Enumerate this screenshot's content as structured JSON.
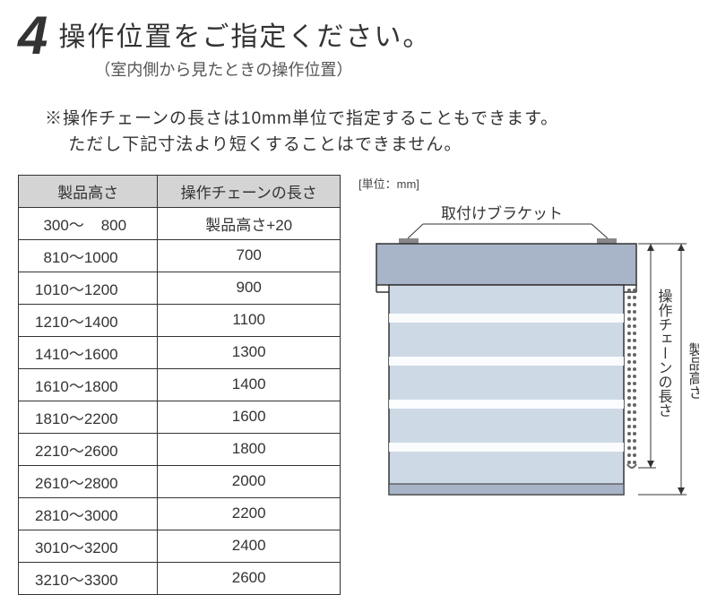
{
  "step": "4",
  "title": "操作位置をご指定ください。",
  "subtitle": "（室内側から見たときの操作位置）",
  "note_line1": "※操作チェーンの長さは10mm単位で指定することもできます。",
  "note_line2": "　 ただし下記寸法より短くすることはできません。",
  "unit_label": "[単位：mm]",
  "table": {
    "col1": "製品高さ",
    "col2": "操作チェーンの長さ",
    "rows": [
      {
        "h": " 300～  800",
        "c": "製品高さ+20"
      },
      {
        "h": " 810～1000",
        "c": "700"
      },
      {
        "h": "1010～1200",
        "c": "900"
      },
      {
        "h": "1210～1400",
        "c": "1100"
      },
      {
        "h": "1410～1600",
        "c": "1300"
      },
      {
        "h": "1610～1800",
        "c": "1400"
      },
      {
        "h": "1810～2200",
        "c": "1600"
      },
      {
        "h": "2210～2600",
        "c": "1800"
      },
      {
        "h": "2610～2800",
        "c": "2000"
      },
      {
        "h": "2810～3000",
        "c": "2200"
      },
      {
        "h": "3010～3200",
        "c": "2400"
      },
      {
        "h": "3210～3300",
        "c": "2600"
      }
    ]
  },
  "diagram": {
    "bracket_label": "取付けブラケット",
    "chain_label": "操作チェーンの長さ",
    "height_label": "製品高さ",
    "colors": {
      "headrail": "#a8b4c7",
      "fabric": "#ced9e6",
      "stroke": "#333333",
      "bracket": "#888888"
    }
  }
}
